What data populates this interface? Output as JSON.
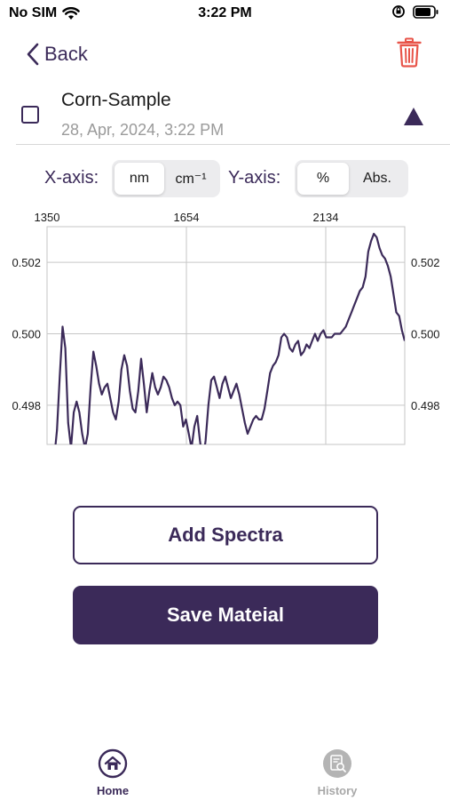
{
  "status_bar": {
    "carrier": "No SIM",
    "time": "3:22 PM"
  },
  "nav": {
    "back_label": "Back",
    "icons": [
      "chevron-left-icon",
      "trash-icon"
    ],
    "trash_color": "#e8554a"
  },
  "sample": {
    "name": "Corn-Sample",
    "date": "28, Apr, 2024, 3:22 PM",
    "checked": false
  },
  "axis_controls": {
    "x_label": "X-axis:",
    "x_options": [
      "nm",
      "cm⁻¹"
    ],
    "x_selected": "nm",
    "y_label": "Y-axis:",
    "y_options": [
      "%",
      "Abs."
    ],
    "y_selected": "%"
  },
  "chart_data": {
    "type": "line",
    "grid": true,
    "top_tick_labels": [
      "1350",
      "1654",
      "2134"
    ],
    "y_tick_labels": [
      "0.502",
      "0.500",
      "0.498"
    ],
    "y_ticks": [
      0.502,
      0.5,
      0.498
    ],
    "ylim": [
      0.4969,
      0.503
    ],
    "line_color": "#3b2a59",
    "series": [
      {
        "values": [
          0.4965,
          0.4973,
          0.4988,
          0.5002,
          0.4996,
          0.4975,
          0.4968,
          0.4978,
          0.4981,
          0.4978,
          0.4972,
          0.4968,
          0.4972,
          0.4985,
          0.4995,
          0.4991,
          0.4986,
          0.4983,
          0.4985,
          0.4986,
          0.4982,
          0.4978,
          0.4976,
          0.4981,
          0.499,
          0.4994,
          0.4991,
          0.4984,
          0.4979,
          0.4978,
          0.4984,
          0.4993,
          0.4986,
          0.4978,
          0.4984,
          0.4989,
          0.4985,
          0.4983,
          0.4985,
          0.4988,
          0.4987,
          0.4985,
          0.4982,
          0.498,
          0.4981,
          0.498,
          0.4974,
          0.4976,
          0.4972,
          0.4968,
          0.4974,
          0.4977,
          0.497,
          0.4964,
          0.497,
          0.498,
          0.4987,
          0.4988,
          0.4985,
          0.4982,
          0.4986,
          0.4988,
          0.4985,
          0.4982,
          0.4984,
          0.4986,
          0.4983,
          0.4979,
          0.4975,
          0.4972,
          0.4974,
          0.4976,
          0.4977,
          0.4976,
          0.4976,
          0.4979,
          0.4984,
          0.4989,
          0.4991,
          0.4992,
          0.4994,
          0.4999,
          0.5,
          0.4999,
          0.4996,
          0.4995,
          0.4997,
          0.4998,
          0.4994,
          0.4995,
          0.4997,
          0.4996,
          0.4998,
          0.5,
          0.4998,
          0.5,
          0.5001,
          0.4999,
          0.4999,
          0.4999,
          0.5,
          0.5,
          0.5,
          0.5001,
          0.5002,
          0.5004,
          0.5006,
          0.5008,
          0.501,
          0.5012,
          0.5013,
          0.5016,
          0.5023,
          0.5026,
          0.5028,
          0.5027,
          0.5024,
          0.5022,
          0.5021,
          0.5019,
          0.5016,
          0.5011,
          0.5006,
          0.5005,
          0.5001,
          0.4998
        ]
      }
    ]
  },
  "actions": {
    "add_spectra": "Add Spectra",
    "save_material": "Save Mateial"
  },
  "tab_bar": {
    "home": "Home",
    "history": "History",
    "icons": [
      "home-icon",
      "history-icon"
    ]
  }
}
